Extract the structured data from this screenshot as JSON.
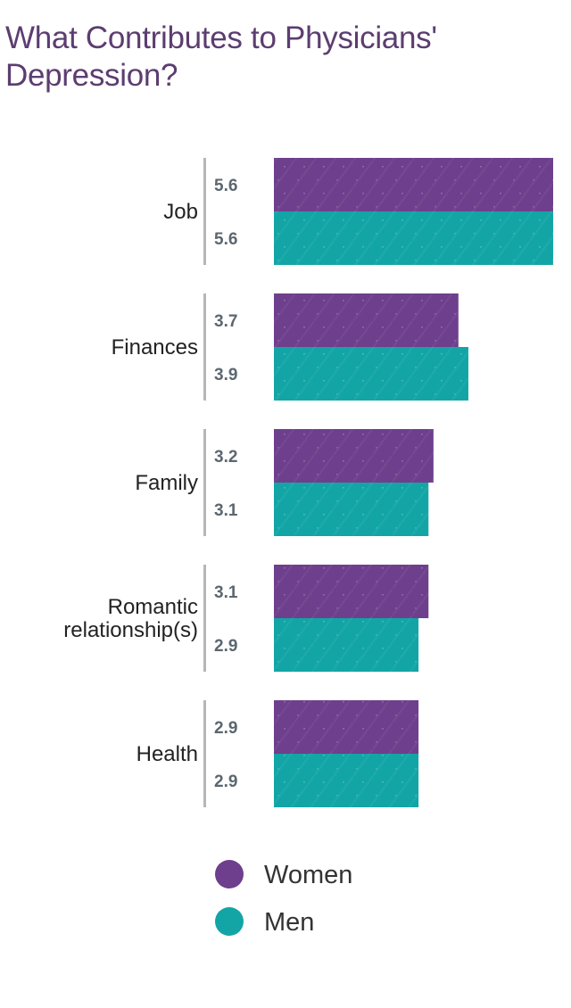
{
  "title": "What Contributes to Physicians' Depression?",
  "colors": {
    "title": "#5c3d70",
    "women": "#6e3f8c",
    "men": "#13a5a5",
    "separator": "#b3b7ba",
    "value_label": "#5b6770"
  },
  "chart_data": {
    "type": "bar",
    "orientation": "horizontal",
    "title": "What Contributes to Physicians' Depression?",
    "categories": [
      "Job",
      "Finances",
      "Family",
      "Romantic relationship(s)",
      "Health"
    ],
    "category_lines": [
      [
        "Job"
      ],
      [
        "Finances"
      ],
      [
        "Family"
      ],
      [
        "Romantic",
        "relationship(s)"
      ],
      [
        "Health"
      ]
    ],
    "series": [
      {
        "name": "Women",
        "color": "#6e3f8c",
        "values": [
          5.6,
          3.7,
          3.2,
          3.1,
          2.9
        ]
      },
      {
        "name": "Men",
        "color": "#13a5a5",
        "values": [
          5.6,
          3.9,
          3.1,
          2.9,
          2.9
        ]
      }
    ],
    "value_labels": [
      [
        "5.6",
        "5.6"
      ],
      [
        "3.7",
        "3.9"
      ],
      [
        "3.2",
        "3.1"
      ],
      [
        "3.1",
        "2.9"
      ],
      [
        "2.9",
        "2.9"
      ]
    ],
    "xlim": [
      0,
      5.6
    ],
    "grid": false,
    "legend_position": "bottom"
  }
}
